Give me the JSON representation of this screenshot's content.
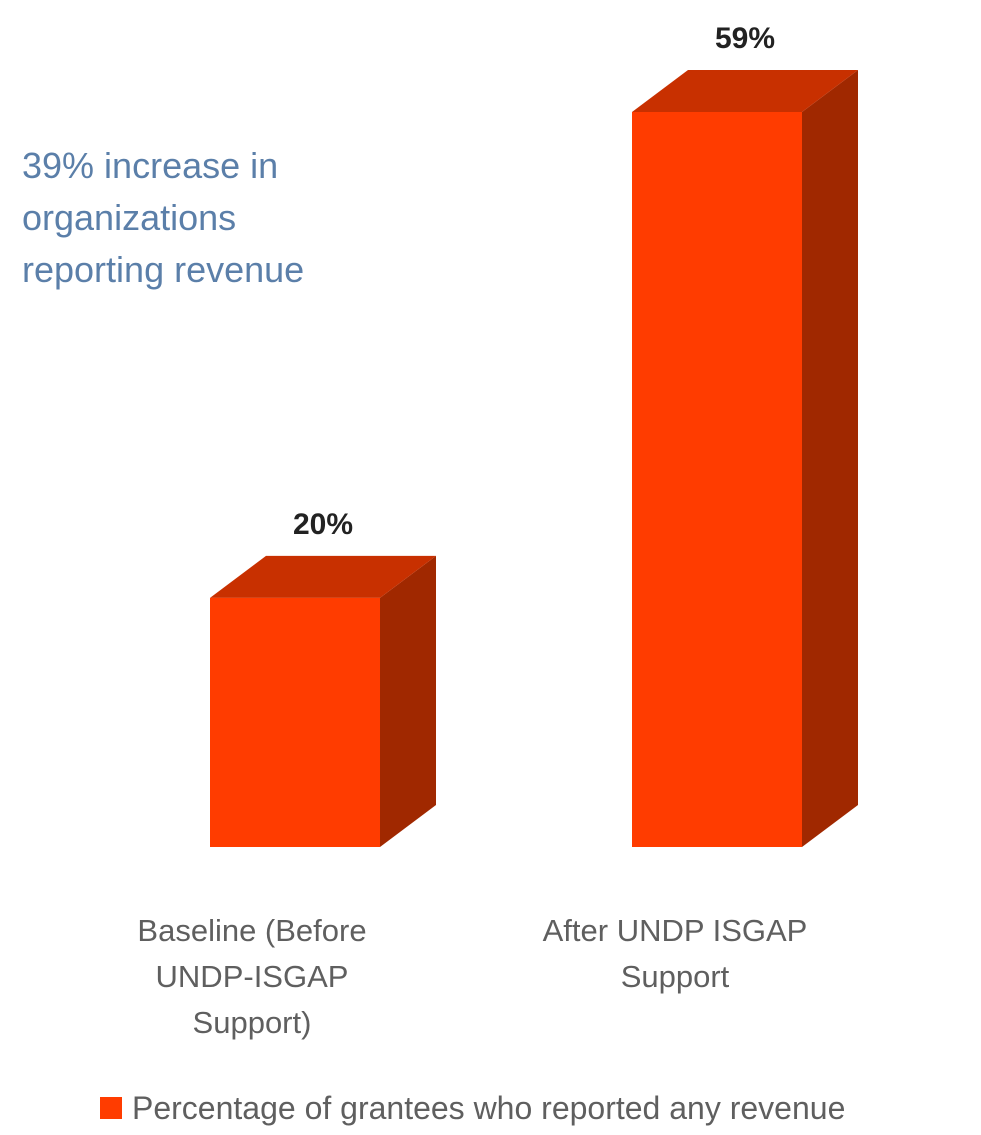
{
  "chart_data": {
    "type": "bar",
    "style": "3d-column",
    "categories": [
      "Baseline (Before\nUNDP-ISGAP\nSupport)",
      "After UNDP ISGAP\nSupport"
    ],
    "series": [
      {
        "name": "Percentage of grantees who reported any revenue",
        "values": [
          20,
          59
        ],
        "data_labels": [
          "20%",
          "59%"
        ]
      }
    ],
    "annotations": [
      "39% increase in\norganizations\nreporting revenue"
    ],
    "title": "",
    "xlabel": "",
    "ylabel": "",
    "ylim": [
      0,
      59
    ],
    "grid": false,
    "legend_position": "bottom",
    "colors": {
      "bar_front": "#ff3c00",
      "bar_top": "#c83000",
      "bar_side": "#a02800",
      "annotation": "#5b7fa9",
      "label_text": "#5f5f5f"
    }
  }
}
